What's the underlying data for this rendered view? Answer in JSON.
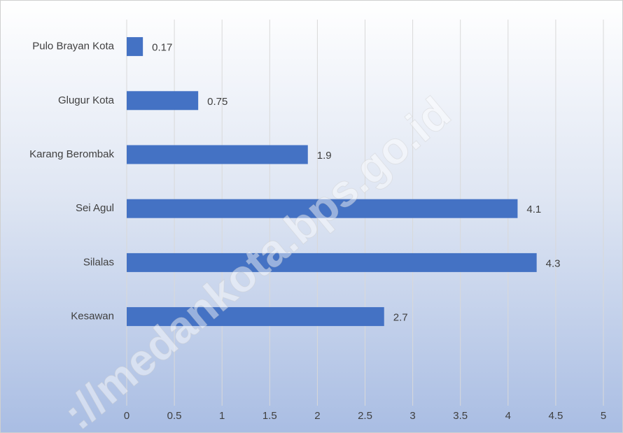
{
  "chart_data": {
    "type": "bar",
    "orientation": "horizontal",
    "categories": [
      "Pulo Brayan Kota",
      "Glugur Kota",
      "Karang Berombak",
      "Sei Agul",
      "Silalas",
      "Kesawan"
    ],
    "values": [
      0.17,
      0.75,
      1.9,
      4.1,
      4.3,
      2.7
    ],
    "color": "#4472c4",
    "xlim": [
      0,
      5
    ],
    "xticks": [
      0,
      0.5,
      1,
      1.5,
      2,
      2.5,
      3,
      3.5,
      4,
      4.5,
      5
    ],
    "grid": true,
    "watermark": "://medankota.bps.go.id"
  }
}
